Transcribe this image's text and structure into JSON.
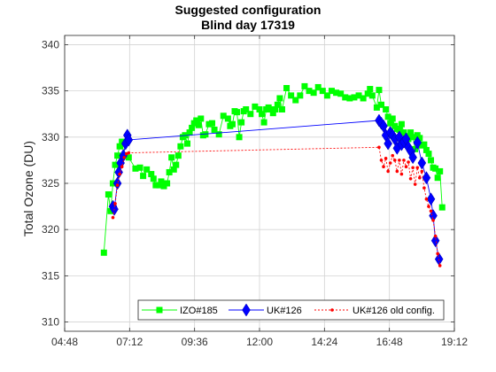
{
  "chart_data": {
    "type": "line",
    "title": "Suggested configuration",
    "subtitle": "Blind day 17319",
    "xlabel": "",
    "ylabel": "Total Ozone (DU)",
    "xlim": [
      "04:48",
      "19:12"
    ],
    "ylim": [
      309,
      341
    ],
    "x_ticks": [
      "04:48",
      "07:12",
      "09:36",
      "12:00",
      "14:24",
      "16:48",
      "19:12"
    ],
    "y_ticks": [
      310,
      315,
      320,
      325,
      330,
      335,
      340
    ],
    "grid": true,
    "legend_position": "bottom-right",
    "series": [
      {
        "name": "IZO#185",
        "color": "#00ff00",
        "marker": "square",
        "x": [
          "06:15",
          "06:25",
          "06:30",
          "06:35",
          "06:40",
          "06:45",
          "06:50",
          "06:55",
          "07:00",
          "07:10",
          "07:25",
          "07:35",
          "07:42",
          "07:50",
          "08:00",
          "08:05",
          "08:10",
          "08:18",
          "08:22",
          "08:28",
          "08:35",
          "08:40",
          "08:45",
          "08:50",
          "08:55",
          "09:00",
          "09:05",
          "09:10",
          "09:15",
          "09:20",
          "09:25",
          "09:30",
          "09:35",
          "09:40",
          "09:45",
          "09:50",
          "09:55",
          "10:00",
          "10:08",
          "10:15",
          "10:20",
          "10:30",
          "10:40",
          "10:50",
          "10:55",
          "11:00",
          "11:05",
          "11:10",
          "11:15",
          "11:20",
          "11:25",
          "11:30",
          "11:40",
          "11:50",
          "12:00",
          "12:05",
          "12:10",
          "12:15",
          "12:20",
          "12:25",
          "12:30",
          "12:35",
          "12:40",
          "12:45",
          "12:50",
          "13:00",
          "13:10",
          "13:20",
          "13:30",
          "13:40",
          "13:50",
          "14:00",
          "14:10",
          "14:20",
          "14:30",
          "14:40",
          "14:50",
          "15:00",
          "15:10",
          "15:20",
          "15:30",
          "15:40",
          "15:50",
          "16:00",
          "16:05",
          "16:10",
          "16:20",
          "16:25",
          "16:30",
          "16:40",
          "16:45",
          "16:50",
          "16:55",
          "17:00",
          "17:05",
          "17:10",
          "17:15",
          "17:20",
          "17:25",
          "17:30",
          "17:35",
          "17:40",
          "17:45",
          "17:50",
          "17:55",
          "18:00",
          "18:05",
          "18:10",
          "18:15",
          "18:20",
          "18:25",
          "18:30",
          "18:35",
          "18:40",
          "18:45"
        ],
        "y": [
          317.5,
          323.8,
          322,
          325,
          327,
          328,
          329,
          329.5,
          328,
          327.8,
          326.6,
          326.7,
          325.8,
          326.5,
          326,
          325.5,
          324.8,
          324.8,
          325.2,
          324.7,
          325,
          326.2,
          327.8,
          326.5,
          327,
          328,
          329,
          330,
          330.2,
          329.3,
          330.5,
          331,
          331.5,
          331.8,
          331.3,
          332,
          330.2,
          330.3,
          331.4,
          331.5,
          330.8,
          330.3,
          332.3,
          332,
          331.2,
          331.4,
          332.8,
          332.7,
          330,
          331.6,
          332.8,
          333,
          332.5,
          333.3,
          333,
          332.5,
          331.6,
          333,
          333.2,
          333,
          332.6,
          333,
          333.5,
          334.2,
          333,
          335.3,
          334.5,
          334,
          334.5,
          335.5,
          335,
          334.8,
          335.4,
          335,
          334.5,
          335,
          334.8,
          334.7,
          334.3,
          334.2,
          334.3,
          334.5,
          334.2,
          334.7,
          335.2,
          334.5,
          333.2,
          335.1,
          333.5,
          333,
          332.2,
          331.5,
          332,
          331.2,
          330.9,
          330.8,
          331.4,
          330.5,
          330.1,
          329.8,
          330.5,
          330,
          328.7,
          330.2,
          329.9,
          329.1,
          329.2,
          328.6,
          328.2,
          327.5,
          326.7,
          326.6,
          325.6,
          326.3,
          322.4
        ]
      },
      {
        "name": "UK#126",
        "color": "#0000ff",
        "marker": "diamond",
        "x": [
          "06:35",
          "06:38",
          "06:45",
          "06:48",
          "06:52",
          "06:58",
          "07:03",
          "07:07",
          "07:10",
          "16:25",
          "16:30",
          "16:35",
          "16:40",
          "16:45",
          "16:50",
          "16:55",
          "17:00",
          "17:05",
          "17:10",
          "17:15",
          "17:20",
          "17:25",
          "17:30",
          "17:35",
          "17:40",
          "17:50",
          "18:00",
          "18:10",
          "18:20",
          "18:25",
          "18:30",
          "18:38"
        ],
        "y": [
          322.5,
          322.2,
          325,
          326.2,
          327.2,
          328,
          329.3,
          330.2,
          329.7,
          331.8,
          331.5,
          331.2,
          330.2,
          329.3,
          330.5,
          330.2,
          329.8,
          328.8,
          330,
          329.2,
          329.5,
          329.8,
          328.9,
          328.5,
          327.8,
          329.4,
          327.2,
          325.6,
          323.3,
          321.5,
          318.8,
          316.8
        ]
      },
      {
        "name": "UK#126 old config.",
        "color": "#ff0000",
        "marker": "dot",
        "x": [
          "06:35",
          "06:40",
          "06:45",
          "06:50",
          "06:55",
          "07:00",
          "07:05",
          "07:10",
          "16:25",
          "16:30",
          "16:35",
          "16:40",
          "16:45",
          "16:50",
          "16:55",
          "17:00",
          "17:05",
          "17:10",
          "17:15",
          "17:20",
          "17:25",
          "17:30",
          "17:35",
          "17:40",
          "17:45",
          "17:50",
          "17:55",
          "18:00",
          "18:05",
          "18:10",
          "18:15",
          "18:20",
          "18:25",
          "18:30",
          "18:35",
          "18:40"
        ],
        "y": [
          321.3,
          322.8,
          324.8,
          326,
          326.8,
          327.8,
          328.2,
          328.3,
          328.9,
          327.5,
          326.8,
          327.7,
          326.3,
          327.2,
          328,
          327.5,
          326.3,
          327.5,
          326,
          327.5,
          326.8,
          327.3,
          325.5,
          326.7,
          324.9,
          326.7,
          325.6,
          326.3,
          324.5,
          323.3,
          322.5,
          322,
          321,
          319.3,
          317.4,
          316.1
        ]
      }
    ]
  }
}
